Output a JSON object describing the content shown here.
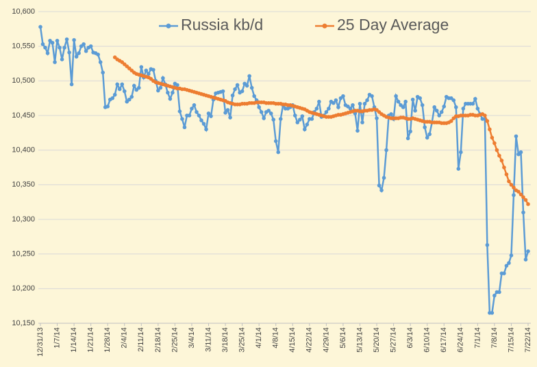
{
  "chart_data": {
    "type": "line",
    "categories": [
      "12/31/13",
      null,
      null,
      null,
      null,
      null,
      null,
      "1/7/14",
      null,
      null,
      null,
      null,
      null,
      null,
      "1/14/14",
      null,
      null,
      null,
      null,
      null,
      null,
      "1/21/14",
      null,
      null,
      null,
      null,
      null,
      null,
      "1/28/14",
      null,
      null,
      null,
      null,
      null,
      null,
      "2/4/14",
      null,
      null,
      null,
      null,
      null,
      null,
      "2/11/14",
      null,
      null,
      null,
      null,
      null,
      null,
      "2/18/14",
      null,
      null,
      null,
      null,
      null,
      null,
      "2/25/14",
      null,
      null,
      null,
      null,
      null,
      null,
      "3/4/14",
      null,
      null,
      null,
      null,
      null,
      null,
      "3/11/14",
      null,
      null,
      null,
      null,
      null,
      null,
      "3/18/14",
      null,
      null,
      null,
      null,
      null,
      null,
      "3/25/14",
      null,
      null,
      null,
      null,
      null,
      null,
      "4/1/14",
      null,
      null,
      null,
      null,
      null,
      null,
      "4/8/14",
      null,
      null,
      null,
      null,
      null,
      null,
      "4/15/14",
      null,
      null,
      null,
      null,
      null,
      null,
      "4/22/14",
      null,
      null,
      null,
      null,
      null,
      null,
      "4/29/14",
      null,
      null,
      null,
      null,
      null,
      null,
      "5/6/14",
      null,
      null,
      null,
      null,
      null,
      null,
      "5/13/14",
      null,
      null,
      null,
      null,
      null,
      null,
      "5/20/14",
      null,
      null,
      null,
      null,
      null,
      null,
      "5/27/14",
      null,
      null,
      null,
      null,
      null,
      null,
      "6/3/14",
      null,
      null,
      null,
      null,
      null,
      null,
      "6/10/14",
      null,
      null,
      null,
      null,
      null,
      null,
      "6/17/14",
      null,
      null,
      null,
      null,
      null,
      null,
      "6/24/14",
      null,
      null,
      null,
      null,
      null,
      null,
      "7/1/14",
      null,
      null,
      null,
      null,
      null,
      null,
      "7/8/14",
      null,
      null,
      null,
      null,
      null,
      null,
      "7/15/14",
      null,
      null,
      null,
      null,
      null,
      null,
      "7/22/14"
    ],
    "series": [
      {
        "name": "Russia kb/d",
        "color": "#5b9bd5",
        "values": [
          10578,
          10553,
          10548,
          10540,
          10558,
          10555,
          10527,
          10558,
          10548,
          10531,
          10548,
          10560,
          10541,
          10495,
          10559,
          10535,
          10540,
          10550,
          10553,
          10543,
          10548,
          10550,
          10541,
          10540,
          10538,
          10527,
          10512,
          10462,
          10463,
          10473,
          10475,
          10480,
          10495,
          10488,
          10495,
          10485,
          10470,
          10473,
          10477,
          10493,
          10487,
          10490,
          10520,
          10505,
          10515,
          10510,
          10517,
          10516,
          10500,
          10486,
          10490,
          10504,
          10495,
          10483,
          10474,
          10483,
          10496,
          10494,
          10456,
          10445,
          10433,
          10450,
          10450,
          10460,
          10465,
          10455,
          10450,
          10443,
          10438,
          10430,
          10453,
          10449,
          10473,
          10482,
          10483,
          10484,
          10485,
          10454,
          10458,
          10447,
          10479,
          10488,
          10494,
          10483,
          10485,
          10496,
          10493,
          10507,
          10490,
          10478,
          10472,
          10462,
          10455,
          10446,
          10455,
          10457,
          10453,
          10444,
          10413,
          10397,
          10445,
          10465,
          10460,
          10460,
          10462,
          10465,
          10450,
          10440,
          10444,
          10449,
          10430,
          10437,
          10445,
          10445,
          10455,
          10460,
          10470,
          10448,
          10450,
          10455,
          10460,
          10470,
          10468,
          10472,
          10462,
          10475,
          10478,
          10465,
          10463,
          10460,
          10465,
          10453,
          10428,
          10467,
          10440,
          10467,
          10472,
          10480,
          10478,
          10462,
          10446,
          10349,
          10342,
          10360,
          10400,
          10450,
          10452,
          10445,
          10478,
          10470,
          10465,
          10462,
          10470,
          10417,
          10427,
          10473,
          10457,
          10477,
          10475,
          10465,
          10433,
          10418,
          10423,
          10440,
          10462,
          10457,
          10450,
          10455,
          10463,
          10477,
          10475,
          10475,
          10472,
          10462,
          10373,
          10397,
          10460,
          10467,
          10467,
          10467,
          10467,
          10474,
          10460,
          10452,
          10445,
          10445,
          10263,
          10165,
          10165,
          10190,
          10195,
          10195,
          10222,
          10222,
          10233,
          10237,
          10248,
          10335,
          10420,
          10394,
          10397,
          10310,
          10242,
          10254
        ]
      },
      {
        "name": "25 Day Average",
        "color": "#ed7d31",
        "values": [
          null,
          null,
          null,
          null,
          null,
          null,
          null,
          null,
          null,
          null,
          null,
          null,
          null,
          null,
          null,
          null,
          null,
          null,
          null,
          null,
          null,
          null,
          null,
          null,
          null,
          null,
          null,
          null,
          null,
          null,
          null,
          10534,
          10531,
          10529,
          10527,
          10524,
          10521,
          10518,
          10515,
          10512,
          10510,
          10509,
          10508,
          10507,
          10506,
          10505,
          10503,
          10500,
          10498,
          10497,
          10496,
          10495,
          10494,
          10493,
          10492,
          10491,
          10490,
          10489,
          10489,
          10488,
          10488,
          10487,
          10486,
          10485,
          10484,
          10483,
          10482,
          10481,
          10480,
          10479,
          10478,
          10477,
          10476,
          10475,
          10474,
          10473,
          10472,
          10471,
          10469,
          10468,
          10467,
          10466,
          10466,
          10466,
          10467,
          10467,
          10467,
          10468,
          10468,
          10468,
          10469,
          10469,
          10469,
          10469,
          10468,
          10468,
          10468,
          10468,
          10467,
          10467,
          10467,
          10466,
          10466,
          10465,
          10465,
          10464,
          10463,
          10462,
          10461,
          10460,
          10459,
          10457,
          10455,
          10454,
          10453,
          10452,
          10451,
          10450,
          10449,
          10448,
          10448,
          10448,
          10449,
          10450,
          10451,
          10451,
          10452,
          10453,
          10454,
          10455,
          10456,
          10457,
          10457,
          10456,
          10456,
          10457,
          10457,
          10458,
          10458,
          10459,
          10458,
          10455,
          10452,
          10450,
          10448,
          10447,
          10446,
          10446,
          10446,
          10446,
          10447,
          10447,
          10446,
          10445,
          10445,
          10446,
          10445,
          10444,
          10443,
          10442,
          10441,
          10441,
          10441,
          10440,
          10440,
          10440,
          10440,
          10439,
          10439,
          10439,
          10440,
          10442,
          10446,
          10449,
          10449,
          10450,
          10450,
          10450,
          10450,
          10451,
          10451,
          10450,
          10450,
          10451,
          10452,
          10450,
          10442,
          10430,
          10418,
          10410,
          10400,
          10392,
          10385,
          10375,
          10365,
          10355,
          10350,
          10346,
          10342,
          10340,
          10336,
          10332,
          10328,
          10322
        ]
      }
    ],
    "ylim": [
      10150,
      10600
    ],
    "yticks": [
      {
        "value": 10150,
        "label": "10,150"
      },
      {
        "value": 10200,
        "label": "10,200"
      },
      {
        "value": 10250,
        "label": "10,250"
      },
      {
        "value": 10300,
        "label": "10,300"
      },
      {
        "value": 10350,
        "label": "10,350"
      },
      {
        "value": 10400,
        "label": "10,400"
      },
      {
        "value": 10450,
        "label": "10,450"
      },
      {
        "value": 10500,
        "label": "10,500"
      },
      {
        "value": 10550,
        "label": "10,550"
      },
      {
        "value": 10600,
        "label": "10,600"
      }
    ],
    "grid": true,
    "legend": "top"
  }
}
